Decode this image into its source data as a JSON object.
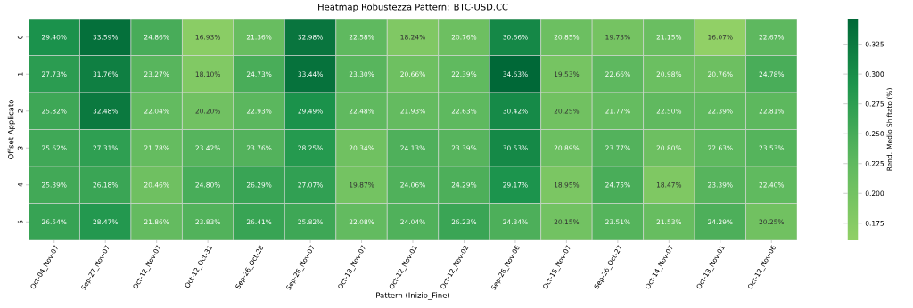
{
  "chart_data": {
    "type": "heatmap",
    "title": "Heatmap Robustezza Pattern: BTC-USD.CC",
    "xlabel": "Pattern (Inizio_Fine)",
    "ylabel": "Offset Applicato",
    "clabel": "Rend. Medio Shiftato (%)",
    "categories": [
      "Oct-04_Nov-07",
      "Sep-27_Nov-07",
      "Oct-12_Nov-07",
      "Oct-12_Oct-31",
      "Sep-26_Oct-28",
      "Sep-26_Nov-07",
      "Oct-13_Nov-07",
      "Oct-12_Nov-01",
      "Oct-12_Nov-02",
      "Sep-26_Nov-06",
      "Oct-15_Nov-07",
      "Sep-26_Oct-27",
      "Oct-14_Nov-07",
      "Oct-13_Nov-01",
      "Oct-12_Nov-06"
    ],
    "y_categories": [
      "0",
      "1",
      "2",
      "3",
      "4",
      "5"
    ],
    "cells": [
      [
        0.294,
        0.3359,
        0.2486,
        0.1693,
        0.2136,
        0.3298,
        0.2258,
        0.1824,
        0.2076,
        0.3066,
        0.2085,
        0.1973,
        0.2115,
        0.1607,
        0.2267
      ],
      [
        0.2773,
        0.3176,
        0.2327,
        0.181,
        0.2473,
        0.3344,
        0.233,
        0.2066,
        0.2239,
        0.3463,
        0.1953,
        0.2266,
        0.2098,
        0.2076,
        0.2478
      ],
      [
        0.2582,
        0.3248,
        0.2204,
        0.202,
        0.2293,
        0.2949,
        0.2248,
        0.2193,
        0.2263,
        0.3042,
        0.2025,
        0.2177,
        0.225,
        0.2239,
        0.2281
      ],
      [
        0.2562,
        0.2731,
        0.2178,
        0.2342,
        0.2376,
        0.2825,
        0.2034,
        0.2413,
        0.2339,
        0.3053,
        0.2089,
        0.2377,
        0.208,
        0.2263,
        0.2353
      ],
      [
        0.2539,
        0.2618,
        0.2046,
        0.248,
        0.2629,
        0.2707,
        0.1987,
        0.2406,
        0.2429,
        0.2917,
        0.1895,
        0.2475,
        0.1847,
        0.2339,
        0.224
      ],
      [
        0.2654,
        0.2847,
        0.2186,
        0.2383,
        0.2641,
        0.2582,
        0.2208,
        0.2404,
        0.2623,
        0.2434,
        0.2015,
        0.2351,
        0.2153,
        0.2429,
        0.2025
      ]
    ],
    "cell_labels": [
      [
        "29.40%",
        "33.59%",
        "24.86%",
        "16.93%",
        "21.36%",
        "32.98%",
        "22.58%",
        "18.24%",
        "20.76%",
        "30.66%",
        "20.85%",
        "19.73%",
        "21.15%",
        "16.07%",
        "22.67%"
      ],
      [
        "27.73%",
        "31.76%",
        "23.27%",
        "18.10%",
        "24.73%",
        "33.44%",
        "23.30%",
        "20.66%",
        "22.39%",
        "34.63%",
        "19.53%",
        "22.66%",
        "20.98%",
        "20.76%",
        "24.78%"
      ],
      [
        "25.82%",
        "32.48%",
        "22.04%",
        "20.20%",
        "22.93%",
        "29.49%",
        "22.48%",
        "21.93%",
        "22.63%",
        "30.42%",
        "20.25%",
        "21.77%",
        "22.50%",
        "22.39%",
        "22.81%"
      ],
      [
        "25.62%",
        "27.31%",
        "21.78%",
        "23.42%",
        "23.76%",
        "28.25%",
        "20.34%",
        "24.13%",
        "23.39%",
        "30.53%",
        "20.89%",
        "23.77%",
        "20.80%",
        "22.63%",
        "23.53%"
      ],
      [
        "25.39%",
        "26.18%",
        "20.46%",
        "24.80%",
        "26.29%",
        "27.07%",
        "19.87%",
        "24.06%",
        "24.29%",
        "29.17%",
        "18.95%",
        "24.75%",
        "18.47%",
        "23.39%",
        "22.40%"
      ],
      [
        "26.54%",
        "28.47%",
        "21.86%",
        "23.83%",
        "26.41%",
        "25.82%",
        "22.08%",
        "24.04%",
        "26.23%",
        "24.34%",
        "20.15%",
        "23.51%",
        "21.53%",
        "24.29%",
        "20.25%"
      ]
    ],
    "clim": [
      0.1607,
      0.3463
    ],
    "cticks": [
      0.175,
      {
        "value": 0.2,
        "label": "0.200"
      },
      0.225,
      {
        "value": 0.25,
        "label": "0.250"
      },
      0.275,
      {
        "value": 0.3,
        "label": "0.300"
      },
      0.325
    ]
  }
}
